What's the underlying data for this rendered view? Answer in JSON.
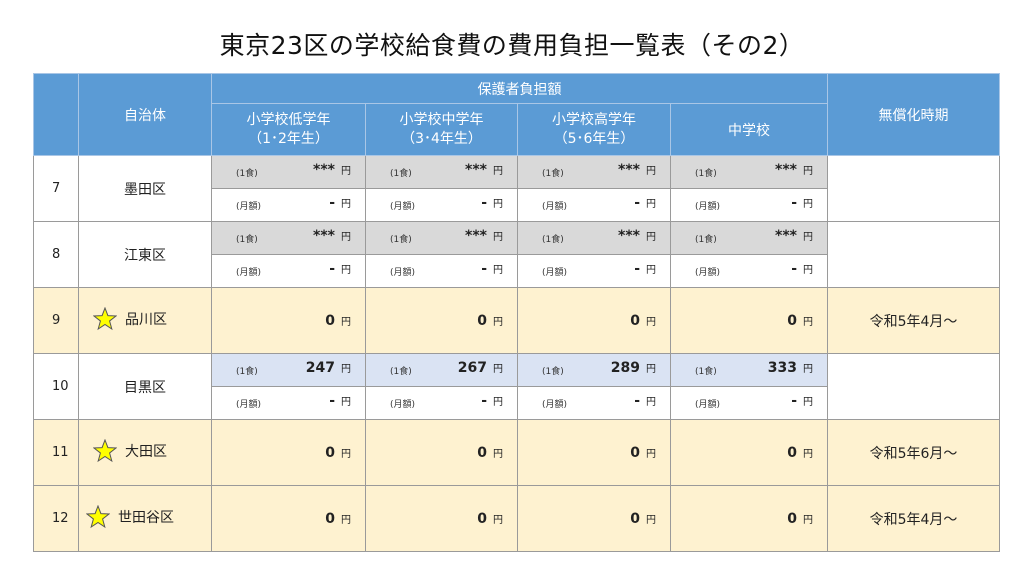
{
  "title": "東京23区の学校給食費の費用負担一覧表（その2）",
  "header": {
    "municipality": "自治体",
    "guardian_burden": "保護者負担額",
    "elem_low": "小学校低学年\n（1･2年生）",
    "elem_mid": "小学校中学年\n（3･4年生）",
    "elem_high": "小学校高学年\n（5･6年生）",
    "junior_high": "中学校",
    "free_from": "無償化時期"
  },
  "labels": {
    "per_meal": "(1食)",
    "monthly": "(月額)",
    "yen": "円"
  },
  "rows": [
    {
      "no": "7",
      "ward": "墨田区",
      "free": false,
      "meal": [
        "***",
        "***",
        "***",
        "***"
      ],
      "month": [
        "-",
        "-",
        "-",
        "-"
      ],
      "period": ""
    },
    {
      "no": "8",
      "ward": "江東区",
      "free": false,
      "meal": [
        "***",
        "***",
        "***",
        "***"
      ],
      "month": [
        "-",
        "-",
        "-",
        "-"
      ],
      "period": ""
    },
    {
      "no": "9",
      "ward": "品川区",
      "free": true,
      "amount": [
        "0",
        "0",
        "0",
        "0"
      ],
      "period": "令和5年4月～"
    },
    {
      "no": "10",
      "ward": "目黒区",
      "free": false,
      "meal": [
        "247",
        "267",
        "289",
        "333"
      ],
      "month": [
        "-",
        "-",
        "-",
        "-"
      ],
      "period": ""
    },
    {
      "no": "11",
      "ward": "大田区",
      "free": true,
      "amount": [
        "0",
        "0",
        "0",
        "0"
      ],
      "period": "令和5年6月～"
    },
    {
      "no": "12",
      "ward": "世田谷区",
      "free": true,
      "amount": [
        "0",
        "0",
        "0",
        "0"
      ],
      "period": "令和5年4月～"
    }
  ],
  "colors": {
    "header": "#5b9bd5",
    "free_row": "#fef2d0",
    "hidden_price": "#d9d9d9",
    "known_price": "#dae3f3",
    "star": "#ffff00"
  },
  "icons": {
    "free_marker": "star-icon"
  }
}
